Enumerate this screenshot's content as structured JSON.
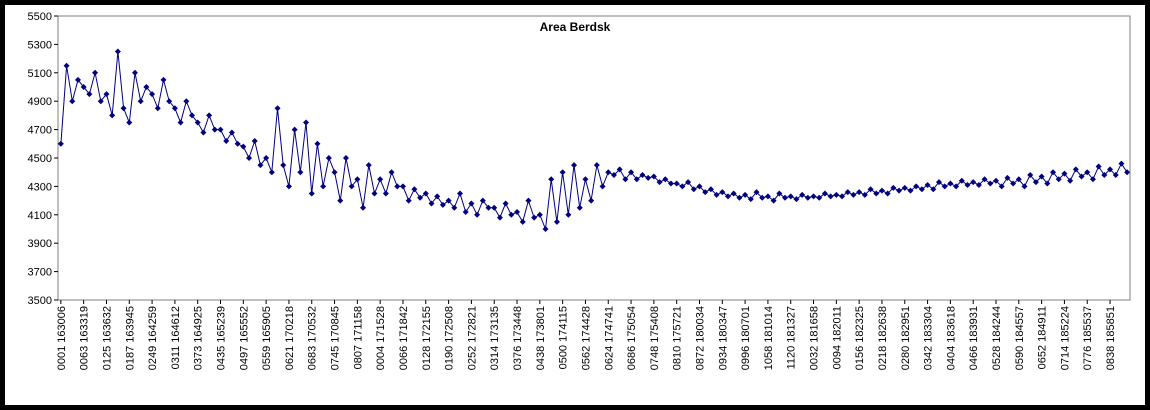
{
  "chart_data": {
    "type": "line",
    "title": "Area Berdsk",
    "color": "#000080",
    "ylim": [
      3500,
      5500
    ],
    "yticks": [
      3500,
      3700,
      3900,
      4100,
      4300,
      4500,
      4700,
      4900,
      5100,
      5300,
      5500
    ],
    "categories": [
      "0001 163006",
      null,
      null,
      null,
      "0063 163319",
      null,
      null,
      null,
      "0125 163632",
      null,
      null,
      null,
      "0187 163945",
      null,
      null,
      null,
      "0249 164259",
      null,
      null,
      null,
      "0311 164612",
      null,
      null,
      null,
      "0373 164925",
      null,
      null,
      null,
      "0435 165239",
      null,
      null,
      null,
      "0497 165552",
      null,
      null,
      null,
      "0559 165905",
      null,
      null,
      null,
      "0621 170218",
      null,
      null,
      null,
      "0683 170532",
      null,
      null,
      null,
      "0745 170845",
      null,
      null,
      null,
      "0807 171158",
      null,
      null,
      null,
      "0004 171528",
      null,
      null,
      null,
      "0066 171842",
      null,
      null,
      null,
      "0128 172155",
      null,
      null,
      null,
      "0190 172508",
      null,
      null,
      null,
      "0252 172821",
      null,
      null,
      null,
      "0314 173135",
      null,
      null,
      null,
      "0376 173448",
      null,
      null,
      null,
      "0438 173801",
      null,
      null,
      null,
      "0500 174115",
      null,
      null,
      null,
      "0562 174428",
      null,
      null,
      null,
      "0624 174741",
      null,
      null,
      null,
      "0686 175054",
      null,
      null,
      null,
      "0748 175408",
      null,
      null,
      null,
      "0810 175721",
      null,
      null,
      null,
      "0872 180034",
      null,
      null,
      null,
      "0934 180347",
      null,
      null,
      null,
      "0996 180701",
      null,
      null,
      null,
      "1058 181014",
      null,
      null,
      null,
      "1120 181327",
      null,
      null,
      null,
      "0032 181658",
      null,
      null,
      null,
      "0094 182011",
      null,
      null,
      null,
      "0156 182325",
      null,
      null,
      null,
      "0218 182638",
      null,
      null,
      null,
      "0280 182951",
      null,
      null,
      null,
      "0342 183304",
      null,
      null,
      null,
      "0404 183618",
      null,
      null,
      null,
      "0466 183931",
      null,
      null,
      null,
      "0528 184244",
      null,
      null,
      null,
      "0590 184557",
      null,
      null,
      null,
      "0652 184911",
      null,
      null,
      null,
      "0714 185224",
      null,
      null,
      null,
      "0776 185537",
      null,
      null,
      null,
      "0838 185851",
      null,
      null,
      null
    ],
    "values": [
      4600,
      5150,
      4900,
      5050,
      5000,
      4950,
      5100,
      4900,
      4950,
      4800,
      5250,
      4850,
      4750,
      5100,
      4900,
      5000,
      4950,
      4850,
      5050,
      4900,
      4850,
      4750,
      4900,
      4800,
      4750,
      4680,
      4800,
      4700,
      4700,
      4620,
      4680,
      4600,
      4580,
      4500,
      4620,
      4450,
      4500,
      4400,
      4850,
      4450,
      4300,
      4700,
      4400,
      4750,
      4250,
      4600,
      4300,
      4500,
      4400,
      4200,
      4500,
      4300,
      4350,
      4150,
      4450,
      4250,
      4350,
      4250,
      4400,
      4300,
      4300,
      4200,
      4280,
      4220,
      4250,
      4180,
      4230,
      4170,
      4200,
      4150,
      4250,
      4120,
      4180,
      4100,
      4200,
      4150,
      4150,
      4080,
      4180,
      4100,
      4120,
      4050,
      4200,
      4080,
      4100,
      4000,
      4350,
      4050,
      4400,
      4100,
      4450,
      4150,
      4350,
      4200,
      4450,
      4300,
      4400,
      4380,
      4420,
      4350,
      4400,
      4350,
      4380,
      4360,
      4370,
      4330,
      4350,
      4320,
      4320,
      4300,
      4330,
      4280,
      4300,
      4260,
      4280,
      4240,
      4260,
      4230,
      4250,
      4220,
      4240,
      4210,
      4260,
      4220,
      4230,
      4200,
      4250,
      4220,
      4230,
      4210,
      4240,
      4220,
      4230,
      4220,
      4250,
      4230,
      4240,
      4230,
      4260,
      4240,
      4260,
      4240,
      4280,
      4250,
      4270,
      4250,
      4290,
      4270,
      4290,
      4270,
      4300,
      4280,
      4310,
      4280,
      4330,
      4300,
      4320,
      4300,
      4340,
      4310,
      4330,
      4310,
      4350,
      4320,
      4340,
      4300,
      4360,
      4320,
      4350,
      4300,
      4380,
      4330,
      4370,
      4320,
      4400,
      4350,
      4390,
      4340,
      4420,
      4370,
      4400,
      4350,
      4440,
      4380,
      4420,
      4380,
      4460,
      4400
    ]
  }
}
